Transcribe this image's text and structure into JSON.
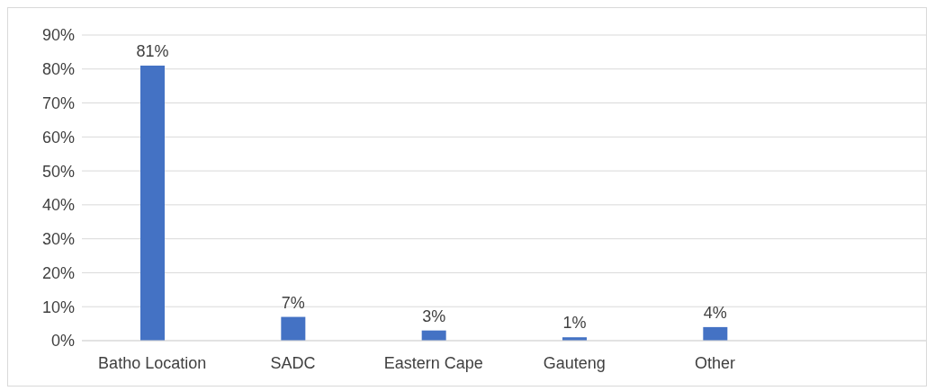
{
  "chart_data": {
    "type": "bar",
    "categories": [
      "Batho Location",
      "SADC",
      "Eastern Cape",
      "Gauteng",
      "Other",
      null
    ],
    "values": [
      81,
      7,
      3,
      1,
      4,
      null
    ],
    "color": "#4472c4",
    "value_labels": [
      "81%",
      "7%",
      "3%",
      "1%",
      "4%",
      null
    ],
    "ylim": [
      0,
      90
    ],
    "yticks": [
      {
        "value": 0,
        "label": "0%"
      },
      {
        "value": 10,
        "label": "10%"
      },
      {
        "value": 20,
        "label": "20%"
      },
      {
        "value": 30,
        "label": "30%"
      },
      {
        "value": 40,
        "label": "40%"
      },
      {
        "value": 50,
        "label": "50%"
      },
      {
        "value": 60,
        "label": "60%"
      },
      {
        "value": 70,
        "label": "70%"
      },
      {
        "value": 80,
        "label": "80%"
      },
      {
        "value": 90,
        "label": "90%"
      }
    ],
    "grid": "y"
  }
}
